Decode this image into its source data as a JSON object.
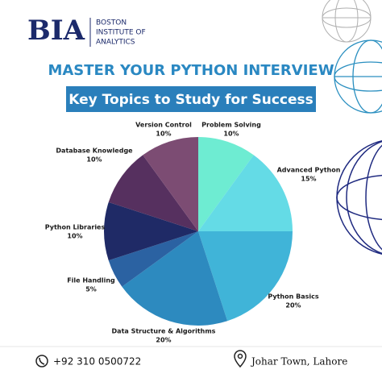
{
  "logo": {
    "mark": "BIA",
    "name": [
      "BOSTON",
      "INSTITUTE OF",
      "ANALYTICS"
    ]
  },
  "chart_data": {
    "type": "pie",
    "title": "MASTER YOUR PYTHON INTERVIEW",
    "subtitle": "Key Topics to Study for Success",
    "categories": [
      "Problem Solving",
      "Advanced Python",
      "Python Basics",
      "Data Structure & Algorithms",
      "File Handling",
      "Python Libraries",
      "Database Knowledge",
      "Version Control"
    ],
    "values": [
      10,
      15,
      20,
      20,
      5,
      10,
      10,
      10
    ],
    "value_labels": [
      "10%",
      "15%",
      "20%",
      "20%",
      "5%",
      "10%",
      "10%",
      "10%"
    ],
    "colors": [
      "#6eecd2",
      "#64dbe6",
      "#40b4d8",
      "#2d8abf",
      "#2b62a2",
      "#1f2a66",
      "#56305f",
      "#7c4c73"
    ]
  },
  "footer": {
    "phone": "+92 310 0500722",
    "address": "Johar Town, Lahore"
  }
}
